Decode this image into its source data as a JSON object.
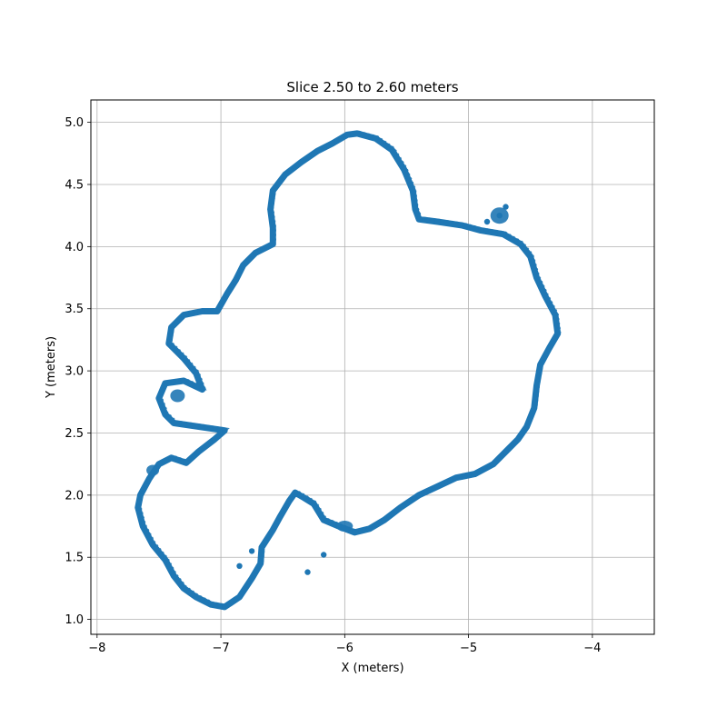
{
  "chart_data": {
    "type": "scatter",
    "title": "Slice 2.50 to 2.60 meters",
    "xlabel": "X (meters)",
    "ylabel": "Y (meters)",
    "xlim": [
      -8.05,
      -3.5
    ],
    "ylim": [
      0.88,
      5.18
    ],
    "xticks": [
      -8,
      -7,
      -6,
      -5,
      -4
    ],
    "xtick_labels": [
      "−8",
      "−7",
      "−6",
      "−5",
      "−4"
    ],
    "yticks": [
      1.0,
      1.5,
      2.0,
      2.5,
      3.0,
      3.5,
      4.0,
      4.5,
      5.0
    ],
    "ytick_labels": [
      "1.0",
      "1.5",
      "2.0",
      "2.5",
      "3.0",
      "3.5",
      "4.0",
      "4.5",
      "5.0"
    ],
    "grid": true,
    "color": "#1f77b4",
    "series": [
      {
        "name": "",
        "points": [
          [
            -5.9,
            4.91
          ],
          [
            -5.75,
            4.87
          ],
          [
            -5.62,
            4.78
          ],
          [
            -5.52,
            4.62
          ],
          [
            -5.45,
            4.45
          ],
          [
            -5.43,
            4.3
          ],
          [
            -5.4,
            4.22
          ],
          [
            -5.25,
            4.2
          ],
          [
            -5.05,
            4.17
          ],
          [
            -4.9,
            4.13
          ],
          [
            -4.72,
            4.1
          ],
          [
            -4.58,
            4.02
          ],
          [
            -4.5,
            3.92
          ],
          [
            -4.45,
            3.75
          ],
          [
            -4.38,
            3.6
          ],
          [
            -4.3,
            3.45
          ],
          [
            -4.28,
            3.3
          ],
          [
            -4.35,
            3.18
          ],
          [
            -4.42,
            3.05
          ],
          [
            -4.45,
            2.88
          ],
          [
            -4.47,
            2.7
          ],
          [
            -4.53,
            2.55
          ],
          [
            -4.6,
            2.45
          ],
          [
            -4.7,
            2.35
          ],
          [
            -4.8,
            2.25
          ],
          [
            -4.95,
            2.17
          ],
          [
            -5.1,
            2.14
          ],
          [
            -5.25,
            2.07
          ],
          [
            -5.4,
            2.0
          ],
          [
            -5.55,
            1.9
          ],
          [
            -5.68,
            1.8
          ],
          [
            -5.8,
            1.73
          ],
          [
            -5.92,
            1.7
          ],
          [
            -6.05,
            1.75
          ],
          [
            -6.17,
            1.8
          ],
          [
            -6.25,
            1.93
          ],
          [
            -6.33,
            1.98
          ],
          [
            -6.4,
            2.02
          ],
          [
            -6.45,
            1.95
          ],
          [
            -6.52,
            1.83
          ],
          [
            -6.58,
            1.72
          ],
          [
            -6.67,
            1.58
          ],
          [
            -6.68,
            1.45
          ],
          [
            -6.75,
            1.33
          ],
          [
            -6.85,
            1.18
          ],
          [
            -6.97,
            1.1
          ],
          [
            -7.08,
            1.12
          ],
          [
            -7.2,
            1.18
          ],
          [
            -7.3,
            1.25
          ],
          [
            -7.38,
            1.35
          ],
          [
            -7.45,
            1.48
          ],
          [
            -7.55,
            1.6
          ],
          [
            -7.63,
            1.75
          ],
          [
            -7.67,
            1.9
          ],
          [
            -7.65,
            2.0
          ],
          [
            -7.58,
            2.13
          ],
          [
            -7.5,
            2.25
          ],
          [
            -7.4,
            2.3
          ],
          [
            -7.28,
            2.26
          ],
          [
            -7.18,
            2.35
          ],
          [
            -7.05,
            2.45
          ],
          [
            -6.97,
            2.52
          ],
          [
            -7.38,
            2.58
          ],
          [
            -7.45,
            2.65
          ],
          [
            -7.5,
            2.78
          ],
          [
            -7.45,
            2.9
          ],
          [
            -7.3,
            2.92
          ],
          [
            -7.15,
            2.85
          ],
          [
            -7.2,
            2.98
          ],
          [
            -7.3,
            3.1
          ],
          [
            -7.42,
            3.22
          ],
          [
            -7.4,
            3.35
          ],
          [
            -7.3,
            3.45
          ],
          [
            -7.15,
            3.48
          ],
          [
            -7.03,
            3.48
          ],
          [
            -6.95,
            3.62
          ],
          [
            -6.88,
            3.73
          ],
          [
            -6.82,
            3.85
          ],
          [
            -6.72,
            3.95
          ],
          [
            -6.58,
            4.02
          ],
          [
            -6.58,
            4.15
          ],
          [
            -6.6,
            4.3
          ],
          [
            -6.58,
            4.45
          ],
          [
            -6.48,
            4.58
          ],
          [
            -6.35,
            4.68
          ],
          [
            -6.22,
            4.77
          ],
          [
            -6.1,
            4.83
          ],
          [
            -5.98,
            4.9
          ],
          [
            -4.75,
            4.25
          ],
          [
            -4.7,
            4.32
          ],
          [
            -4.85,
            4.2
          ],
          [
            -6.3,
            1.38
          ],
          [
            -6.17,
            1.52
          ],
          [
            -6.75,
            1.55
          ],
          [
            -6.85,
            1.43
          ]
        ]
      }
    ]
  }
}
